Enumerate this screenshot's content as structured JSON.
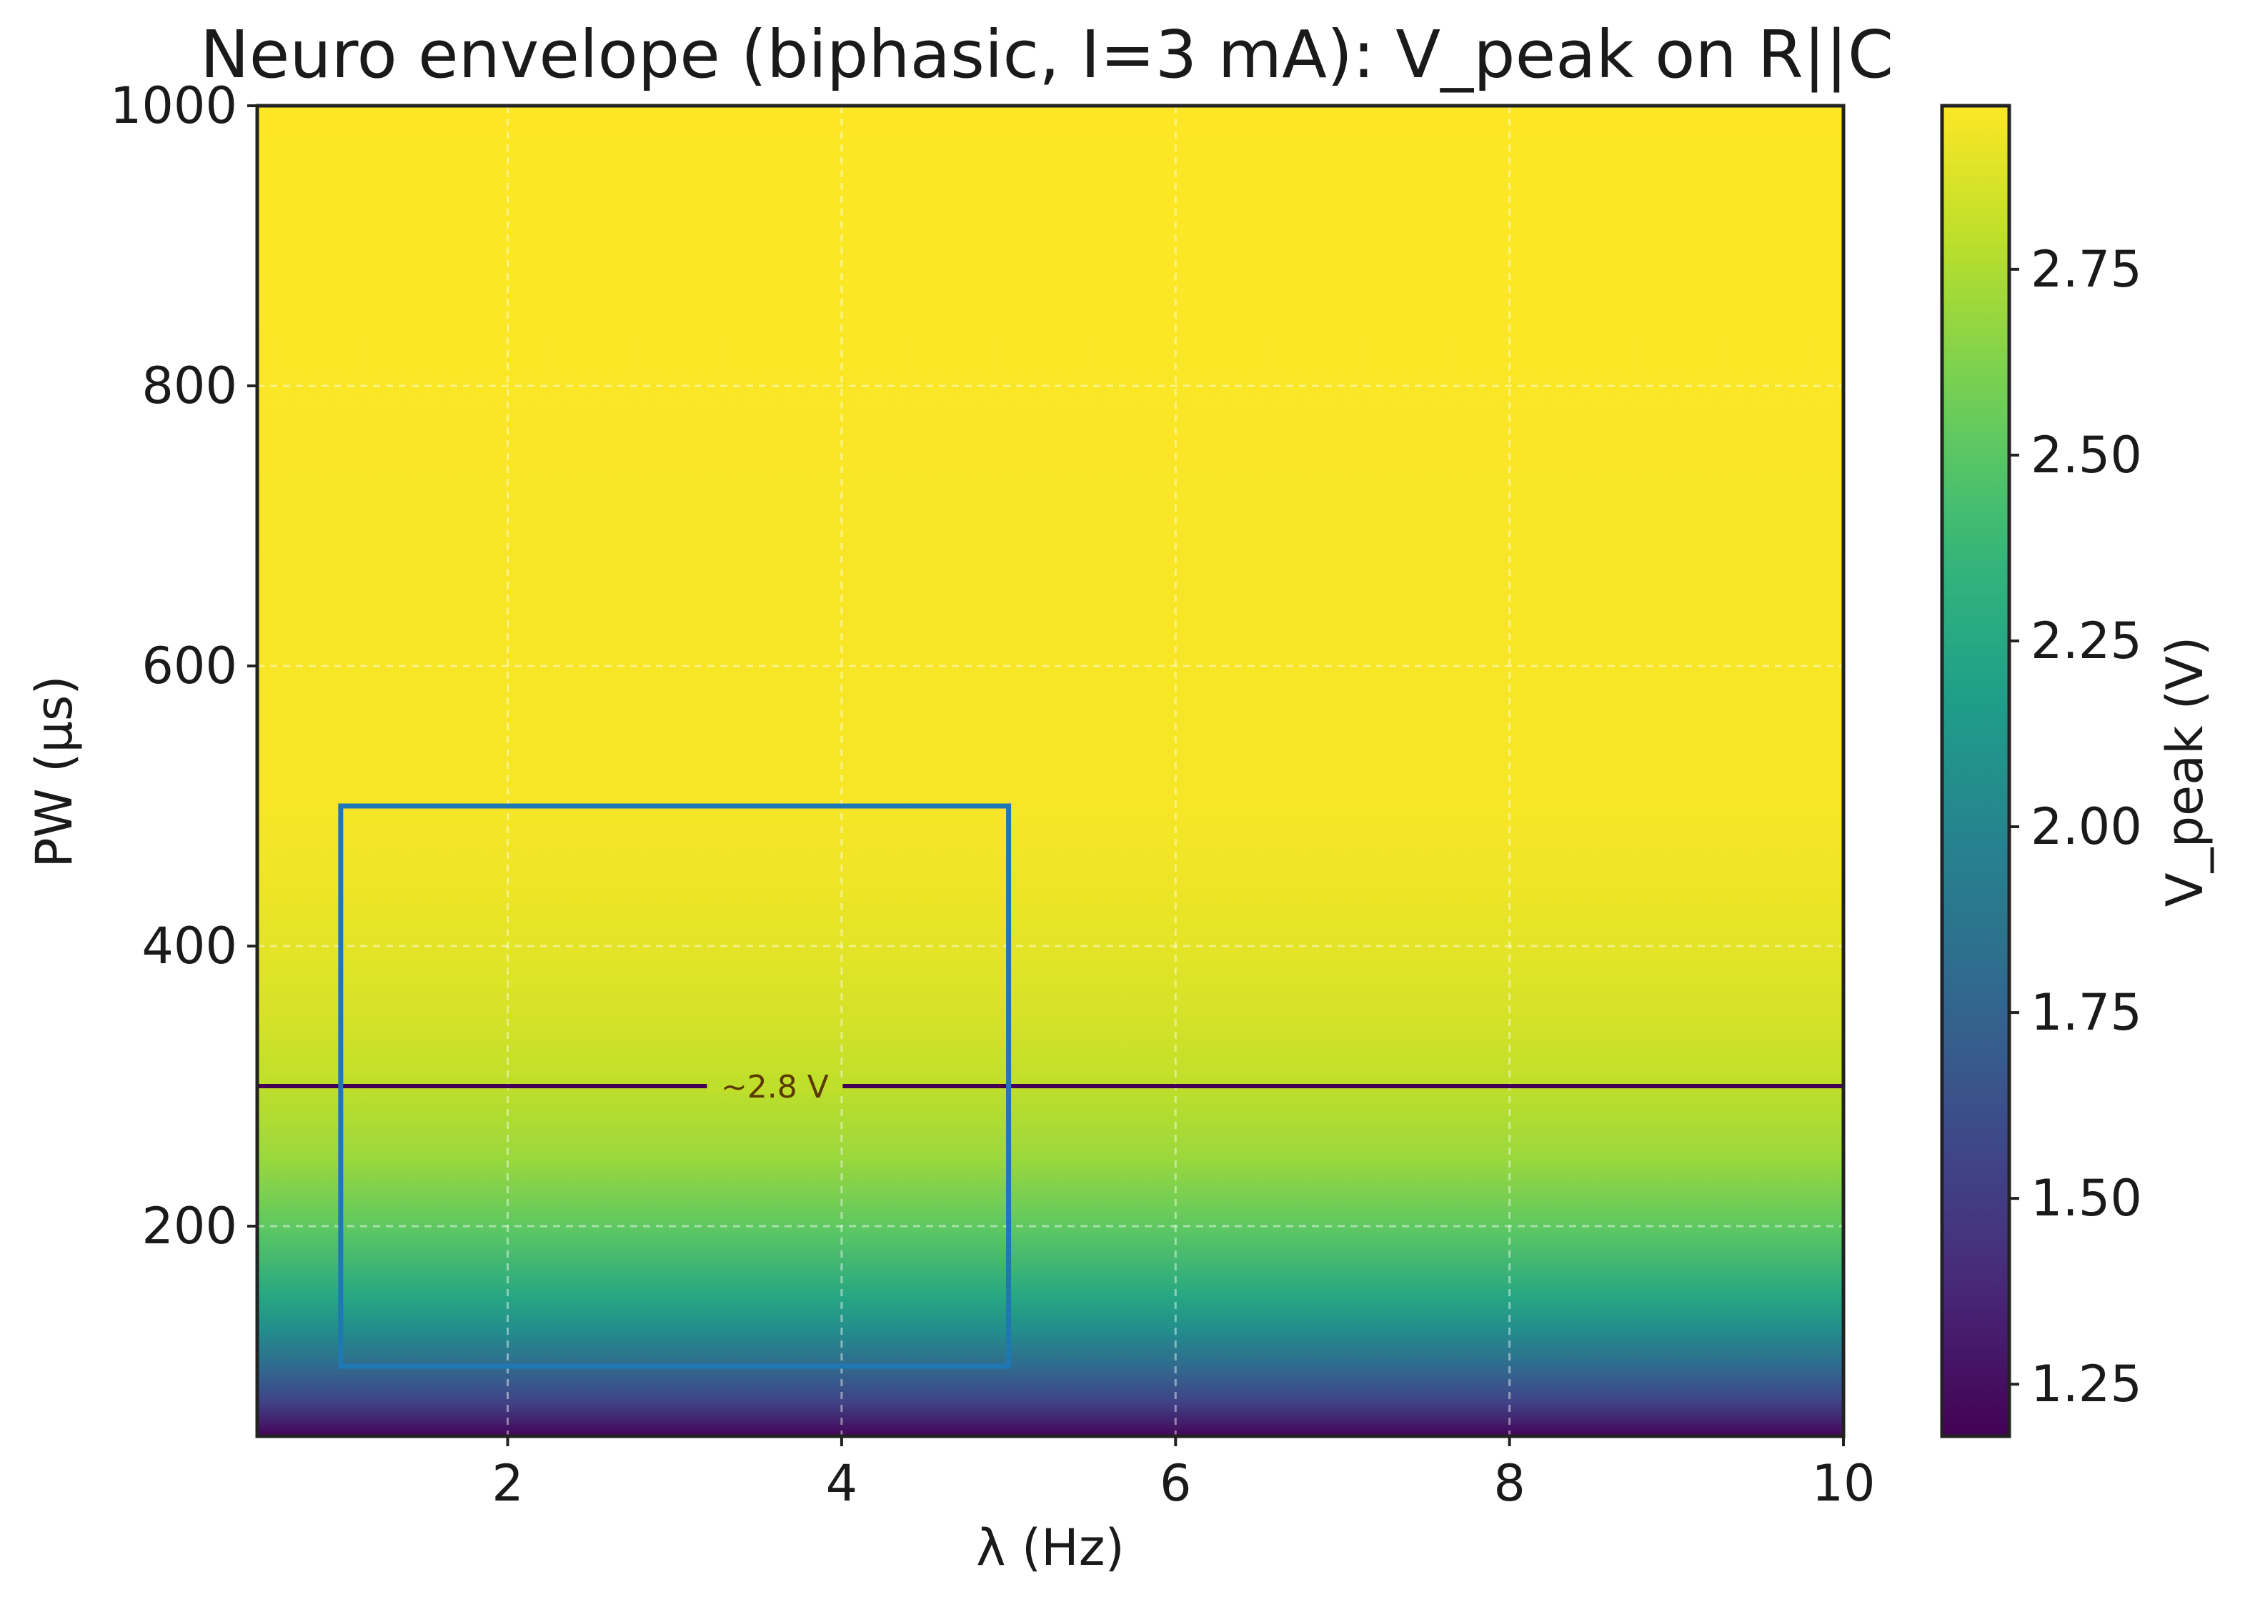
{
  "chart_data": {
    "type": "heatmap",
    "title": "Neuro envelope (biphasic, I=3 mA): V_peak on R||C",
    "xlabel": "λ (Hz)",
    "ylabel": "PW (µs)",
    "colorbar_label": "V_peak (V)",
    "colormap": "viridis",
    "xlim": [
      0.5,
      10
    ],
    "ylim": [
      50,
      1000
    ],
    "x_ticks": [
      2,
      4,
      6,
      8,
      10
    ],
    "y_ticks": [
      200,
      400,
      600,
      800,
      1000
    ],
    "colorbar_range": [
      1.18,
      2.97
    ],
    "colorbar_ticks": [
      "1.25",
      "1.50",
      "1.75",
      "2.00",
      "2.25",
      "2.50",
      "2.75"
    ],
    "grid": true,
    "value_profile": {
      "depends_on": "PW",
      "pw": [
        50,
        75,
        100,
        125,
        150,
        200,
        250,
        300,
        350,
        400,
        450,
        500,
        1000
      ],
      "v_peak": [
        1.2,
        1.55,
        1.8,
        2.05,
        2.25,
        2.52,
        2.7,
        2.8,
        2.86,
        2.9,
        2.93,
        2.95,
        2.97
      ]
    },
    "contour": {
      "value": 2.8,
      "label": "~2.8 V",
      "pw": 300,
      "color": "#440154"
    },
    "region_box": {
      "x": [
        1,
        5
      ],
      "y": [
        100,
        500
      ],
      "color": "#1f77b4"
    }
  }
}
